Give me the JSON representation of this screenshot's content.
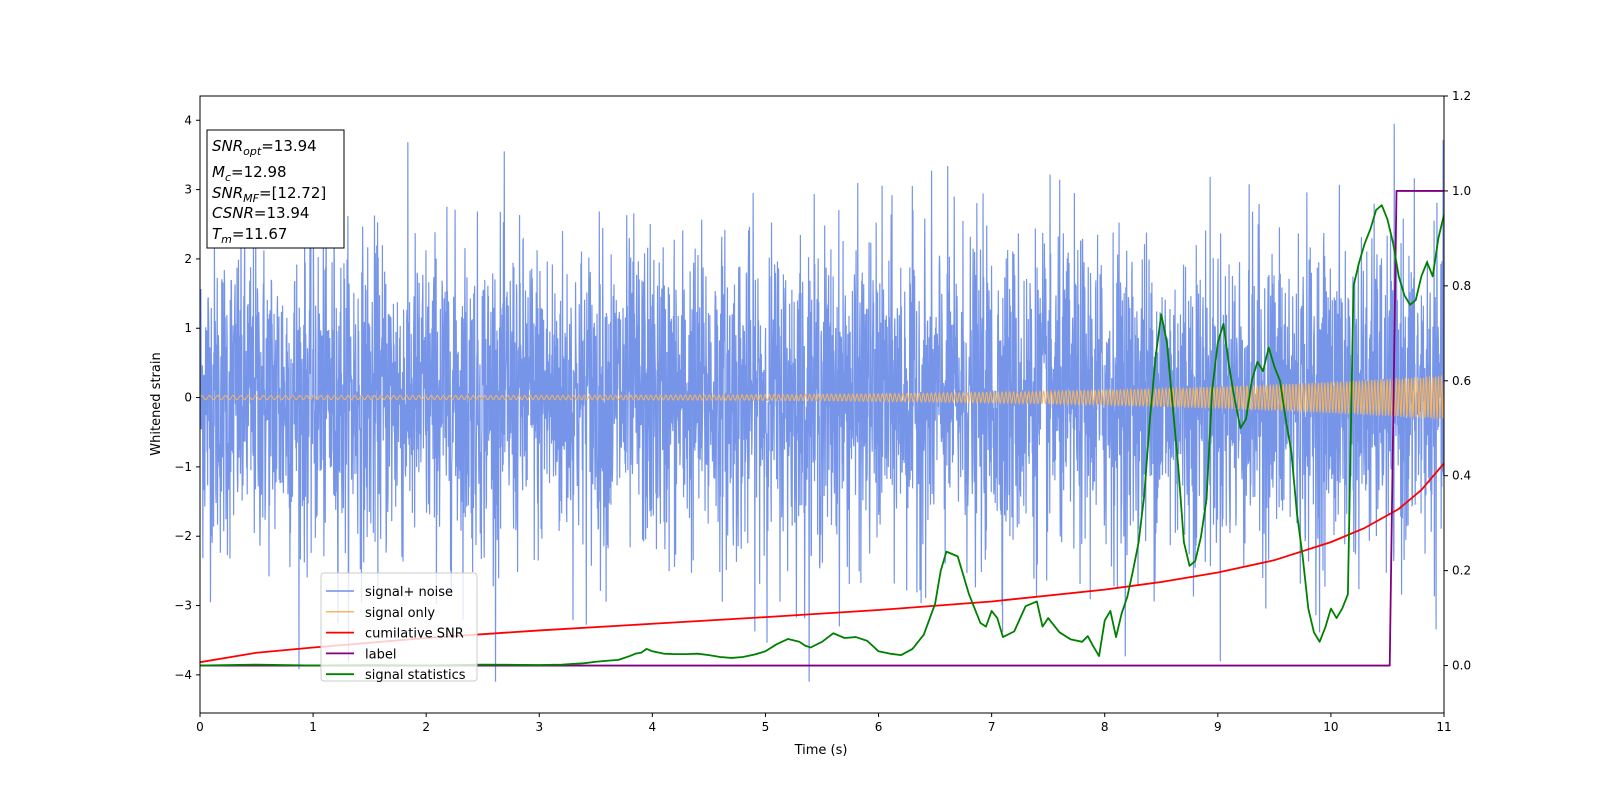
{
  "chart_data": {
    "type": "line",
    "xlabel": "Time (s)",
    "ylabel": "Whitened strain",
    "xlim": [
      0,
      11
    ],
    "ylim_left": [
      -4.55,
      4.35
    ],
    "ylim_right": [
      -0.1,
      1.2
    ],
    "x_ticks": [
      0,
      1,
      2,
      3,
      4,
      5,
      6,
      7,
      8,
      9,
      10,
      11
    ],
    "y_ticks_left": [
      -4,
      -3,
      -2,
      -1,
      0,
      1,
      2,
      3,
      4
    ],
    "y_ticks_right": [
      0.0,
      0.2,
      0.4,
      0.6,
      0.8,
      1.0,
      1.2
    ],
    "grid": false,
    "legend_position": "lower-left",
    "annotation": {
      "snr_opt_base": "SNR",
      "snr_opt_sub": "opt",
      "snr_opt_value": "=13.94",
      "mc_base": "M",
      "mc_sub": "c",
      "mc_value": "=12.98",
      "snr_mf_base": "SNR",
      "snr_mf_sub": "MF",
      "snr_mf_value": "=[12.72]",
      "csnr_base": "CSNR",
      "csnr_value": "=13.94",
      "tm_base": "T",
      "tm_sub": "m",
      "tm_value": "=11.67"
    },
    "series": [
      {
        "name": "signal+ noise",
        "color": "#6f8fe8",
        "axis": "left",
        "kind": "noise",
        "x_range": [
          0,
          11
        ],
        "typical_abs_max": 2.5,
        "min_value": -4.1,
        "max_value": 3.95
      },
      {
        "name": "signal only",
        "color": "#f5b45f",
        "axis": "left",
        "kind": "chirp",
        "x_range": [
          0,
          11
        ],
        "amplitude_start": 0.03,
        "amplitude_end": 0.32
      },
      {
        "name": "cumilative SNR",
        "color": "#ff0000",
        "axis": "right",
        "x": [
          0,
          0.5,
          1,
          2,
          3,
          4,
          5,
          6,
          7,
          8,
          8.5,
          9,
          9.5,
          10,
          10.3,
          10.6,
          10.8,
          11
        ],
        "y": [
          0.007,
          0.027,
          0.038,
          0.058,
          0.074,
          0.088,
          0.102,
          0.117,
          0.135,
          0.16,
          0.176,
          0.196,
          0.222,
          0.26,
          0.29,
          0.33,
          0.37,
          0.426
        ]
      },
      {
        "name": "label",
        "color": "#800080",
        "axis": "right",
        "x": [
          0,
          10.52,
          10.58,
          11
        ],
        "y": [
          0,
          0,
          1,
          1
        ]
      },
      {
        "name": "signal statistics",
        "color": "#008000",
        "axis": "right",
        "x": [
          0,
          0.5,
          1,
          1.5,
          2,
          2.5,
          3,
          3.2,
          3.4,
          3.5,
          3.6,
          3.7,
          3.8,
          3.85,
          3.9,
          3.95,
          4.0,
          4.1,
          4.2,
          4.3,
          4.4,
          4.5,
          4.6,
          4.7,
          4.8,
          4.9,
          5.0,
          5.1,
          5.2,
          5.3,
          5.35,
          5.4,
          5.5,
          5.6,
          5.7,
          5.8,
          5.9,
          6.0,
          6.1,
          6.2,
          6.3,
          6.4,
          6.5,
          6.55,
          6.6,
          6.7,
          6.8,
          6.9,
          6.95,
          7.0,
          7.05,
          7.1,
          7.2,
          7.3,
          7.4,
          7.45,
          7.5,
          7.55,
          7.6,
          7.7,
          7.8,
          7.85,
          7.9,
          7.95,
          8.0,
          8.05,
          8.1,
          8.15,
          8.2,
          8.25,
          8.3,
          8.35,
          8.4,
          8.45,
          8.5,
          8.55,
          8.6,
          8.65,
          8.7,
          8.75,
          8.8,
          8.85,
          8.9,
          8.95,
          9.0,
          9.05,
          9.1,
          9.15,
          9.2,
          9.25,
          9.3,
          9.35,
          9.4,
          9.45,
          9.5,
          9.55,
          9.6,
          9.65,
          9.7,
          9.75,
          9.8,
          9.85,
          9.9,
          9.95,
          10.0,
          10.05,
          10.1,
          10.15,
          10.2,
          10.25,
          10.3,
          10.35,
          10.4,
          10.45,
          10.5,
          10.55,
          10.6,
          10.65,
          10.7,
          10.75,
          10.8,
          10.85,
          10.9,
          10.95,
          11.0
        ],
        "y": [
          0.0,
          0.002,
          0.0,
          0.001,
          0.0,
          0.002,
          0.001,
          0.002,
          0.005,
          0.008,
          0.01,
          0.012,
          0.02,
          0.025,
          0.027,
          0.035,
          0.03,
          0.025,
          0.024,
          0.024,
          0.025,
          0.022,
          0.018,
          0.016,
          0.018,
          0.023,
          0.03,
          0.045,
          0.056,
          0.05,
          0.042,
          0.038,
          0.05,
          0.068,
          0.058,
          0.06,
          0.052,
          0.03,
          0.025,
          0.022,
          0.035,
          0.065,
          0.13,
          0.2,
          0.24,
          0.23,
          0.15,
          0.09,
          0.082,
          0.115,
          0.1,
          0.06,
          0.072,
          0.125,
          0.135,
          0.082,
          0.1,
          0.085,
          0.07,
          0.055,
          0.05,
          0.062,
          0.04,
          0.02,
          0.095,
          0.115,
          0.06,
          0.11,
          0.145,
          0.2,
          0.26,
          0.36,
          0.52,
          0.65,
          0.74,
          0.68,
          0.55,
          0.42,
          0.26,
          0.21,
          0.22,
          0.27,
          0.35,
          0.58,
          0.68,
          0.72,
          0.63,
          0.56,
          0.5,
          0.52,
          0.6,
          0.64,
          0.62,
          0.67,
          0.63,
          0.6,
          0.52,
          0.45,
          0.32,
          0.23,
          0.12,
          0.07,
          0.05,
          0.08,
          0.12,
          0.1,
          0.12,
          0.15,
          0.8,
          0.85,
          0.89,
          0.92,
          0.96,
          0.97,
          0.94,
          0.89,
          0.82,
          0.78,
          0.76,
          0.77,
          0.82,
          0.85,
          0.82,
          0.9,
          0.95
        ]
      }
    ]
  }
}
